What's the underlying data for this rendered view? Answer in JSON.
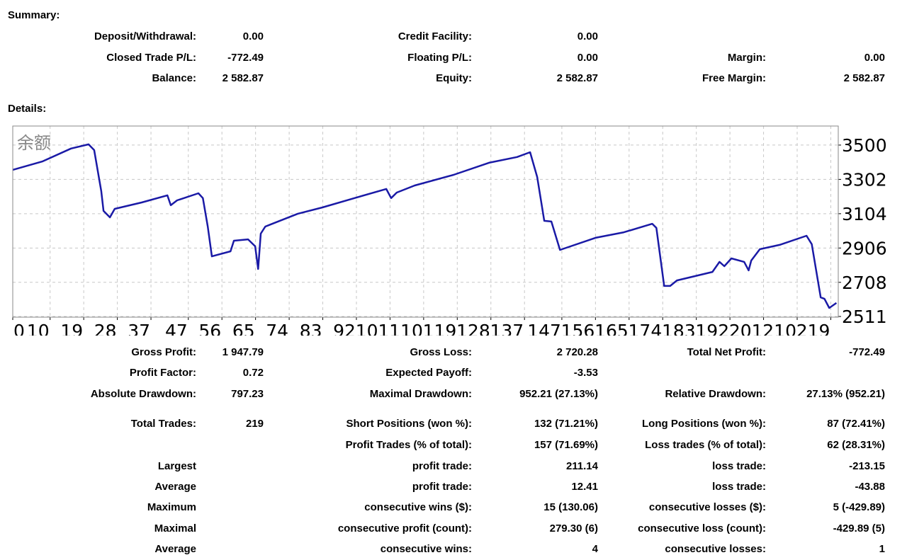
{
  "summary": {
    "heading": "Summary:",
    "rows": [
      [
        {
          "label": "Deposit/Withdrawal:",
          "value": "0.00"
        },
        {
          "label": "Credit Facility:",
          "value": "0.00"
        },
        null
      ],
      [
        {
          "label": "Closed Trade P/L:",
          "value": "-772.49"
        },
        {
          "label": "Floating P/L:",
          "value": "0.00"
        },
        {
          "label": "Margin:",
          "value": "0.00"
        }
      ],
      [
        {
          "label": "Balance:",
          "value": "2 582.87"
        },
        {
          "label": "Equity:",
          "value": "2 582.87"
        },
        {
          "label": "Free Margin:",
          "value": "2 582.87"
        }
      ]
    ]
  },
  "details": {
    "heading": "Details:",
    "rows": [
      [
        {
          "label": "Gross Profit:",
          "value": "1 947.79"
        },
        {
          "label": "Gross Loss:",
          "value": "2 720.28"
        },
        {
          "label": "Total Net Profit:",
          "value": "-772.49"
        }
      ],
      [
        {
          "label": "Profit Factor:",
          "value": "0.72"
        },
        {
          "label": "Expected Payoff:",
          "value": "-3.53"
        },
        null
      ],
      [
        {
          "label": "Absolute Drawdown:",
          "value": "797.23"
        },
        {
          "label": "Maximal Drawdown:",
          "value": "952.21 (27.13%)"
        },
        {
          "label": "Relative Drawdown:",
          "value": "27.13% (952.21)"
        }
      ],
      [
        {
          "label": "Total Trades:",
          "value": "219"
        },
        {
          "label": "Short Positions (won %):",
          "value": "132 (71.21%)"
        },
        {
          "label": "Long Positions (won %):",
          "value": "87 (72.41%)"
        }
      ],
      [
        null,
        {
          "label": "Profit Trades (% of total):",
          "value": "157 (71.69%)"
        },
        {
          "label": "Loss trades (% of total):",
          "value": "62 (28.31%)"
        }
      ],
      [
        {
          "label": "Largest"
        },
        {
          "label": "profit trade:",
          "value": "211.14"
        },
        {
          "label": "loss trade:",
          "value": "-213.15"
        }
      ],
      [
        {
          "label": "Average"
        },
        {
          "label": "profit trade:",
          "value": "12.41"
        },
        {
          "label": "loss trade:",
          "value": "-43.88"
        }
      ],
      [
        {
          "label": "Maximum"
        },
        {
          "label": "consecutive wins ($):",
          "value": "15 (130.06)"
        },
        {
          "label": "consecutive losses ($):",
          "value": "5 (-429.89)"
        }
      ],
      [
        {
          "label": "Maximal"
        },
        {
          "label": "consecutive profit (count):",
          "value": "279.30 (6)"
        },
        {
          "label": "consecutive loss (count):",
          "value": "-429.89 (5)"
        }
      ],
      [
        {
          "label": "Average"
        },
        {
          "label": "consecutive wins:",
          "value": "4"
        },
        {
          "label": "consecutive losses:",
          "value": "1"
        }
      ]
    ]
  },
  "chart_data": {
    "type": "line",
    "title": "余额",
    "color": "#1a1aa6",
    "grid": true,
    "x": [
      0,
      8,
      15.6,
      20.3,
      21.8,
      23.7,
      24.3,
      26,
      27.3,
      34.5,
      41.4,
      42.3,
      44,
      49.7,
      50.9,
      52.2,
      53.3,
      58.3,
      59.2,
      63,
      64.9,
      65.7,
      66.4,
      67.6,
      76.3,
      82.9,
      91.5,
      100,
      101.3,
      102.8,
      107.6,
      118,
      127.5,
      135,
      138.5,
      140.4,
      142.3,
      144.2,
      146.5,
      156,
      163.6,
      171.2,
      172.3,
      174.4,
      176,
      177.8,
      187.3,
      189.2,
      190.5,
      192.4,
      195.8,
      197,
      197.7,
      200,
      205.3,
      212.5,
      213.9,
      216.3,
      217.3,
      218.6,
      220.5
    ],
    "values": [
      3357,
      3406,
      3480,
      3504,
      3471,
      3234,
      3120,
      3083,
      3132,
      3169,
      3210,
      3153,
      3181,
      3222,
      3194,
      3030,
      2858,
      2887,
      2948,
      2956,
      2916,
      2785,
      2989,
      3030,
      3104,
      3140,
      3194,
      3247,
      3194,
      3226,
      3267,
      3328,
      3398,
      3431,
      3459,
      3316,
      3063,
      3059,
      2895,
      2965,
      2997,
      3046,
      3022,
      2687,
      2687,
      2719,
      2768,
      2826,
      2801,
      2846,
      2826,
      2777,
      2834,
      2899,
      2924,
      2977,
      2928,
      2621,
      2613,
      2560,
      2589
    ],
    "xlim": [
      0,
      221
    ],
    "xticks": [
      0,
      10,
      19,
      28,
      37,
      47,
      56,
      65,
      74,
      83,
      92,
      101,
      110,
      119,
      128,
      137,
      147,
      156,
      165,
      174,
      183,
      192,
      201,
      210,
      219
    ],
    "ylim": [
      2507,
      3610
    ],
    "yticks": [
      2511,
      2708,
      2906,
      3104,
      3302,
      3500
    ]
  }
}
